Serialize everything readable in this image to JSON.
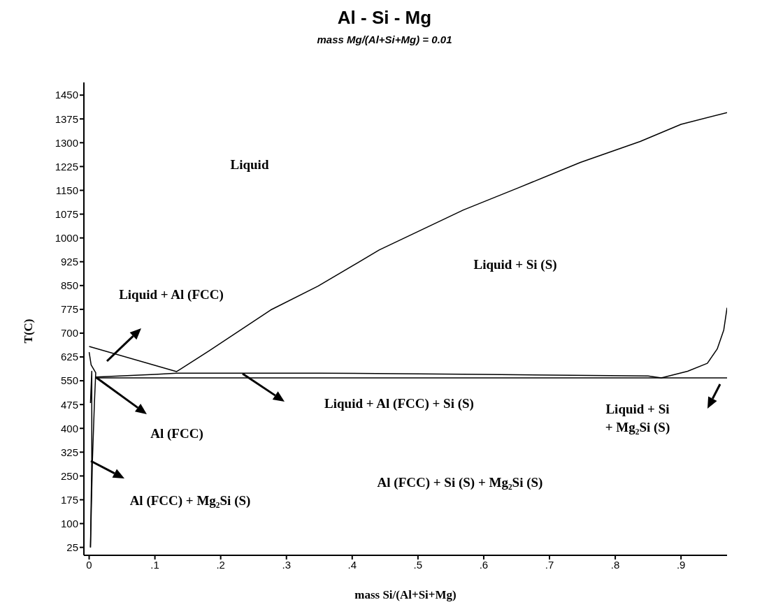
{
  "chart_data": {
    "type": "line",
    "title": "Al - Si - Mg",
    "subtitle": "mass Mg/(Al+Si+Mg) = 0.01",
    "xlabel": "mass Si/(Al+Si+Mg)",
    "ylabel": "T(C)",
    "xlim": [
      -0.008,
      0.97
    ],
    "ylim": [
      0,
      1490
    ],
    "xticks": [
      0,
      {
        "value": 0.1,
        "label": ".1"
      },
      {
        "value": 0.2,
        "label": ".2"
      },
      {
        "value": 0.3,
        "label": ".3"
      },
      {
        "value": 0.4,
        "label": ".4"
      },
      {
        "value": 0.5,
        "label": ".5"
      },
      {
        "value": 0.6,
        "label": ".6"
      },
      {
        "value": 0.7,
        "label": ".7"
      },
      {
        "value": 0.8,
        "label": ".8"
      },
      {
        "value": 0.9,
        "label": ".9"
      }
    ],
    "yticks": [
      25,
      100,
      175,
      250,
      325,
      400,
      475,
      550,
      625,
      700,
      775,
      850,
      925,
      1000,
      1075,
      1150,
      1225,
      1300,
      1375,
      1450
    ],
    "marker": "none",
    "line_style": "solid",
    "series": [
      {
        "color": "#000000",
        "x": [
          0,
          0.133,
          0.183,
          0.276,
          0.348,
          0.441,
          0.569,
          0.654,
          0.747,
          0.838,
          0.9,
          0.97
        ],
        "values": [
          658,
          579,
          645,
          773,
          848,
          962,
          1088,
          1159,
          1238,
          1304,
          1358,
          1395
        ]
      },
      {
        "color": "#000000",
        "x": [
          0.01,
          0.97
        ],
        "values": [
          559,
          559
        ]
      },
      {
        "color": "#000000",
        "x": [
          0.01,
          0.1,
          0.133,
          0.35,
          0.6,
          0.85,
          0.87,
          0.91,
          0.94,
          0.955,
          0.965,
          0.97
        ],
        "values": [
          562,
          570,
          574,
          574,
          570,
          565,
          559,
          580,
          605,
          650,
          710,
          780
        ]
      },
      {
        "color": "#000000",
        "x": [
          0,
          0.003,
          0.01,
          0.008,
          0.005,
          0.002
        ],
        "values": [
          640,
          600,
          575,
          480,
          300,
          25
        ]
      },
      {
        "color": "#000000",
        "x": [
          0.002,
          0.004,
          0.004,
          0.002
        ],
        "values": [
          480,
          580,
          300,
          25
        ]
      }
    ],
    "annotations": [
      "Liquid",
      "Liquid + Si (S)",
      "Liquid + Al (FCC)",
      "Al (FCC)",
      "Liquid + Al (FCC) + Si (S)",
      "Liquid + Si\n+ Mg₂Si (S)",
      "Al (FCC) + Si (S) + Mg₂Si (S)",
      "Al (FCC) + Mg₂Si (S)"
    ]
  }
}
